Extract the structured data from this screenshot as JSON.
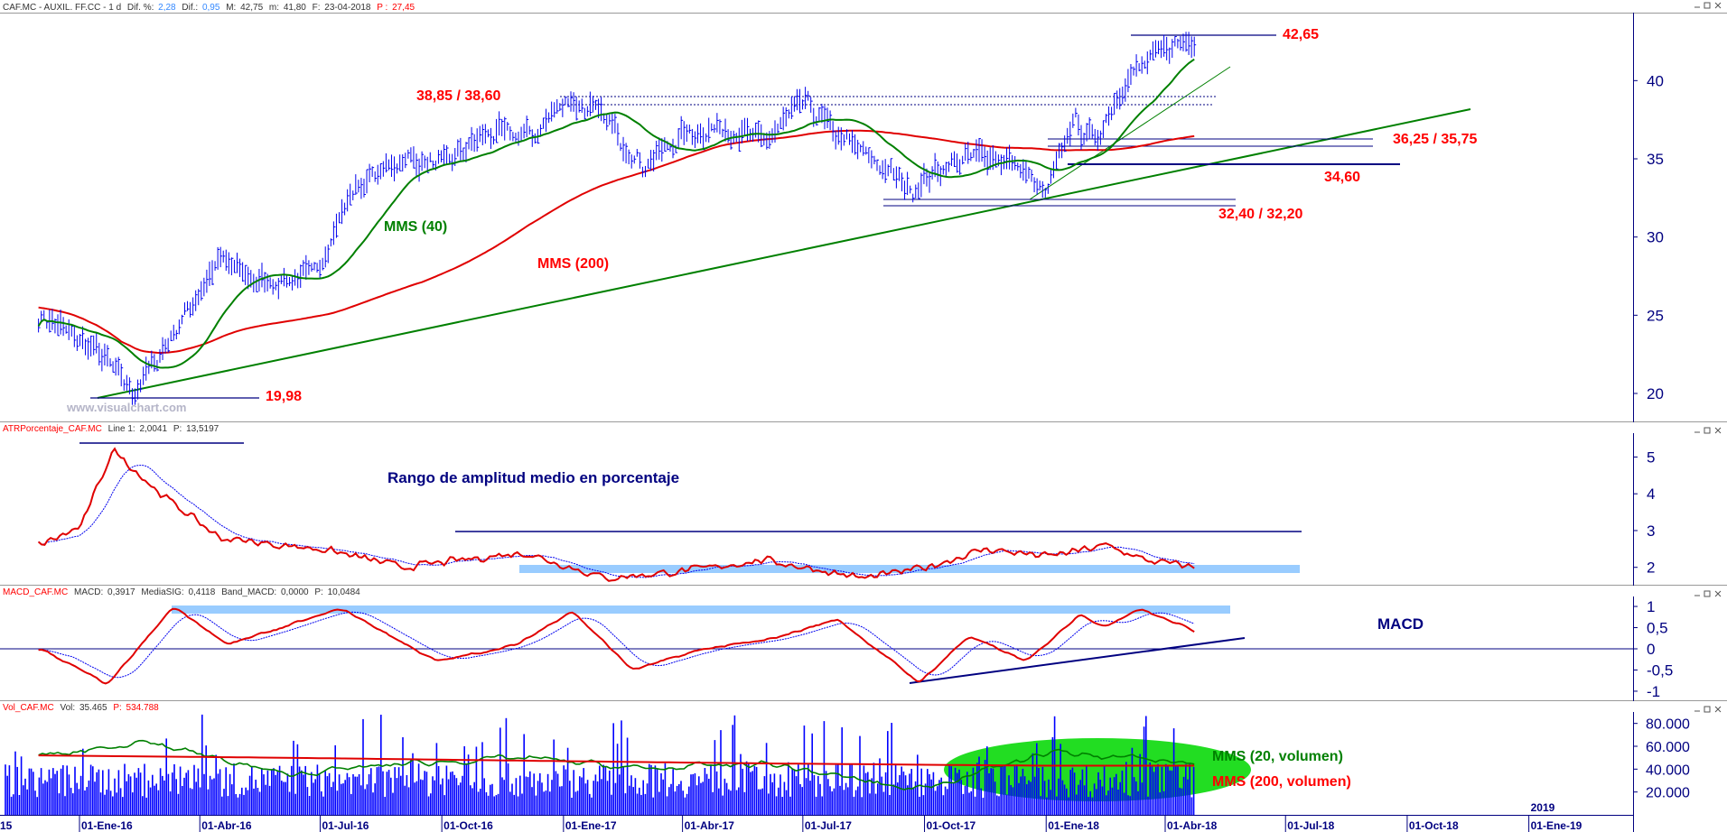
{
  "main_header": {
    "symbol": "CAF.MC - AUXIL. FF.CC -  1 d",
    "dif_pct_label": "Dif. %:",
    "dif_pct": "2,28",
    "dif_label": "Dif.:",
    "dif": "0,95",
    "max_label": "M:",
    "max": "42,75",
    "min_label": "m:",
    "min": "41,80",
    "date_label": "F:",
    "date": "23-04-2018",
    "p_label": "P :",
    "p": "27,45"
  },
  "watermark": "www.visualchart.com",
  "annotations": {
    "a1": "42,65",
    "a2": "38,85 / 38,60",
    "a3": "36,25 / 35,75",
    "a4": "34,60",
    "a5": "32,40 / 32,20",
    "a6": "19,98",
    "mms40": "MMS (40)",
    "mms200": "MMS (200)"
  },
  "atr_header": {
    "name": "ATRPorcentaje_CAF.MC",
    "l1_label": "Line 1:",
    "l1": "2,0041",
    "p_label": "P:",
    "p": "13,5197"
  },
  "atr_title": "Rango de amplitud medio en porcentaje",
  "macd_header": {
    "name": "MACD_CAF.MC",
    "macd_label": "MACD:",
    "macd": "0,3917",
    "sig_label": "MediaSIG:",
    "sig": "0,4118",
    "band_label": "Band_MACD:",
    "band": "0,0000",
    "p_label": "P:",
    "p": "10,0484"
  },
  "macd_title": "MACD",
  "vol_header": {
    "name": "Vol_CAF.MC",
    "vol_label": "Vol:",
    "vol": "35.465",
    "p_label": "P:",
    "p": "534.788"
  },
  "vol_legend": {
    "g": "MMS (20, volumen)",
    "r": "MMS (200, volumen)"
  },
  "x_labels": [
    "15",
    "01-Ene-16",
    "01-Abr-16",
    "01-Jul-16",
    "01-Oct-16",
    "01-Ene-17",
    "01-Abr-17",
    "01-Jul-17",
    "01-Oct-17",
    "01-Ene-18",
    "01-Abr-18",
    "01-Jul-18",
    "01-Oct-18",
    "01-Ene-19"
  ],
  "year_label": "2019",
  "colors": {
    "price": "#0000ee",
    "ma40": "#008000",
    "ma200": "#e00000",
    "navy": "#000080",
    "annot": "#ff0000",
    "band": "#99ccff",
    "vol": "#0000ff",
    "highlight": "#22dd22",
    "hdr": "#333333",
    "hdrval": "#3388ff",
    "hdrred": "#ff0000"
  },
  "chart_data": [
    {
      "type": "line",
      "title": "CAF.MC - AUXIL. FF.CC - 1 d",
      "y_ticks": [
        "20",
        "25",
        "30",
        "35",
        "40"
      ],
      "ylim": [
        18.5,
        44
      ],
      "series": [
        {
          "name": "CAF.MC",
          "x": [
            "2015-12-01",
            "2016-01-15",
            "2016-02-10",
            "2016-03-01",
            "2016-04-15",
            "2016-05-15",
            "2016-06-25",
            "2016-07-25",
            "2016-09-01",
            "2016-10-01",
            "2016-11-01",
            "2016-12-10",
            "2017-01-01",
            "2017-02-01",
            "2017-03-01",
            "2017-04-01",
            "2017-05-01",
            "2017-06-01",
            "2017-07-01",
            "2017-07-25",
            "2017-08-20",
            "2017-09-20",
            "2017-10-15",
            "2017-11-15",
            "2017-12-10",
            "2017-12-31",
            "2018-01-20",
            "2018-02-05",
            "2018-03-01",
            "2018-04-01",
            "2018-04-23"
          ],
          "values": [
            25,
            22.5,
            20,
            22.5,
            28.5,
            27,
            27.5,
            33,
            35,
            34.5,
            36.5,
            36.5,
            38.85,
            37.5,
            34.5,
            36.5,
            37,
            36,
            38.6,
            36.5,
            35,
            33,
            34.5,
            35.3,
            34.5,
            32.5,
            37.5,
            36,
            40,
            42,
            42.75
          ]
        }
      ],
      "levels": [
        "42,65",
        "38,85",
        "38,60",
        "36,25",
        "35,75",
        "34,60",
        "32,40",
        "32,20",
        "19,98"
      ]
    },
    {
      "type": "line",
      "title": "ATRPorcentaje_CAF.MC",
      "y_ticks": [
        "2",
        "3",
        "4",
        "5"
      ],
      "ylim": [
        1.6,
        5.6
      ],
      "series": [
        {
          "name": "ATRPorcentaje_CAF.MC",
          "x": [
            "2015-12-01",
            "2016-01-01",
            "2016-01-25",
            "2016-03-01",
            "2016-04-15",
            "2016-06-01",
            "2016-07-01",
            "2016-09-01",
            "2016-10-15",
            "2016-12-01",
            "2017-02-01",
            "2017-04-01",
            "2017-06-01",
            "2017-08-15",
            "2017-10-01",
            "2017-11-15",
            "2018-01-01",
            "2018-02-15",
            "2018-03-15",
            "2018-04-23"
          ],
          "values": [
            2.6,
            3.1,
            5.2,
            4.0,
            2.8,
            2.6,
            2.5,
            2.0,
            2.2,
            2.4,
            1.7,
            1.9,
            2.2,
            1.7,
            2.0,
            2.5,
            2.3,
            2.6,
            2.2,
            2.0
          ]
        }
      ]
    },
    {
      "type": "line",
      "title": "MACD_CAF.MC",
      "y_ticks": [
        "1",
        "0,5",
        "0",
        "-0,5",
        "-1"
      ],
      "ylim": [
        -1.15,
        1.15
      ],
      "series": [
        {
          "name": "MACD",
          "x": [
            "2015-12-01",
            "2016-01-20",
            "2016-03-10",
            "2016-04-20",
            "2016-07-15",
            "2016-09-25",
            "2016-11-25",
            "2017-01-05",
            "2017-02-20",
            "2017-04-15",
            "2017-06-01",
            "2017-07-25",
            "2017-09-25",
            "2017-11-01",
            "2017-12-15",
            "2018-01-25",
            "2018-02-10",
            "2018-03-10",
            "2018-04-23"
          ],
          "values": [
            0,
            -0.85,
            1.0,
            0.1,
            0.95,
            -0.3,
            0.1,
            0.9,
            -0.5,
            0.0,
            0.2,
            0.7,
            -0.8,
            0.3,
            -0.3,
            0.85,
            0.5,
            0.95,
            0.4
          ]
        }
      ]
    },
    {
      "type": "bar",
      "title": "Vol_CAF.MC",
      "y_ticks": [
        "20.000",
        "40.000",
        "60.000",
        "80.000"
      ],
      "ylim": [
        0,
        90000
      ],
      "series": [
        {
          "name": "MMS (20, volumen)",
          "x": [
            "2015-12-01",
            "2016-02-15",
            "2016-06-01",
            "2016-09-01",
            "2016-12-01",
            "2017-03-01",
            "2017-06-01",
            "2017-09-20",
            "2018-01-01",
            "2018-04-23"
          ],
          "values": [
            50000,
            65000,
            35000,
            45000,
            50000,
            40000,
            45000,
            22000,
            55000,
            45000
          ]
        },
        {
          "name": "MMS (200, volumen)",
          "x": [
            "2015-12-01",
            "2016-06-01",
            "2017-01-01",
            "2017-06-01",
            "2018-01-01",
            "2018-04-23"
          ],
          "values": [
            52000,
            50000,
            47000,
            45000,
            43000,
            43000
          ]
        }
      ]
    }
  ]
}
